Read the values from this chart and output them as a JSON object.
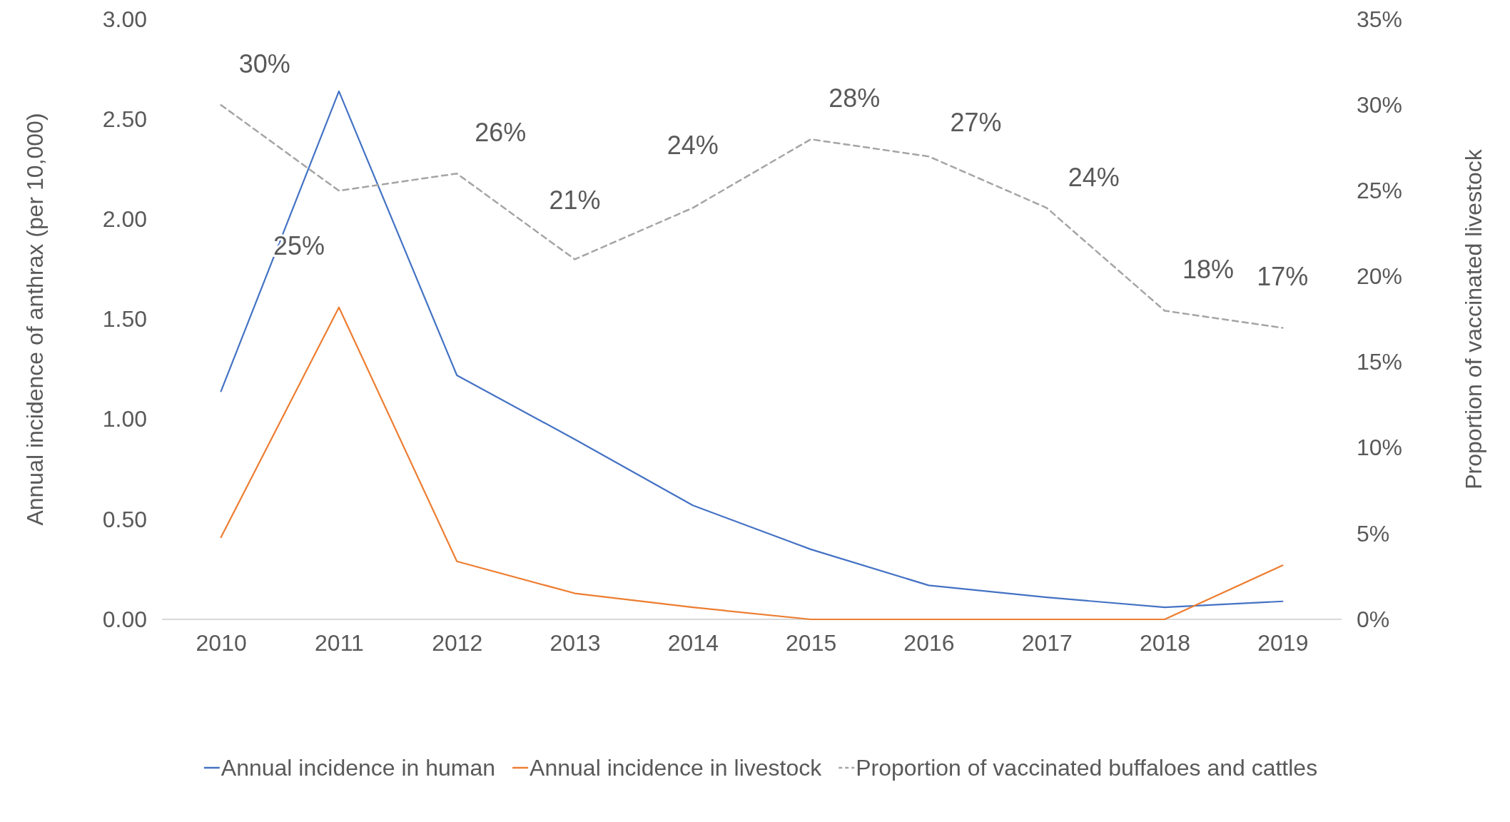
{
  "chart_data": {
    "type": "line",
    "categories": [
      "2010",
      "2011",
      "2012",
      "2013",
      "2014",
      "2015",
      "2016",
      "2017",
      "2018",
      "2019"
    ],
    "ylabel": "Annual incidence of anthrax (per 10,000)",
    "y2label": "Proportion of vaccinated livestock",
    "ylim": [
      0,
      3
    ],
    "yticks": [
      {
        "value": 0,
        "label": "0.00"
      },
      {
        "value": 0.5,
        "label": "0.50"
      },
      {
        "value": 1,
        "label": "1.00"
      },
      {
        "value": 1.5,
        "label": "1.50"
      },
      {
        "value": 2,
        "label": "2.00"
      },
      {
        "value": 2.5,
        "label": "2.50"
      },
      {
        "value": 3,
        "label": "3.00"
      }
    ],
    "y2lim": [
      0,
      35
    ],
    "y2ticks": [
      {
        "value": 0,
        "label": "0%"
      },
      {
        "value": 5,
        "label": "5%"
      },
      {
        "value": 10,
        "label": "10%"
      },
      {
        "value": 15,
        "label": "15%"
      },
      {
        "value": 20,
        "label": "20%"
      },
      {
        "value": 25,
        "label": "25%"
      },
      {
        "value": 30,
        "label": "30%"
      },
      {
        "value": 35,
        "label": "35%"
      }
    ],
    "series": [
      {
        "name": "Annual incidence in human",
        "color": "#4472c4",
        "values": [
          1.14,
          2.64,
          1.22,
          0.9,
          0.57,
          0.35,
          0.17,
          0.11,
          0.06,
          0.09
        ]
      },
      {
        "name": "Annual incidence in livestock",
        "color": "#ed7d31",
        "values": [
          0.41,
          1.56,
          0.29,
          0.13,
          0.06,
          0,
          0,
          0,
          0,
          0.27
        ]
      },
      {
        "name": "Proportion of vaccinated buffaloes and cattles",
        "color": "#a5a5a5",
        "axis": "y2",
        "line_style": "dashed",
        "values": [
          30,
          25,
          26,
          21,
          24,
          28,
          27,
          24,
          18,
          17
        ],
        "value_labels": [
          "30%",
          "25%",
          "26%",
          "21%",
          "24%",
          "28%",
          "27%",
          "24%",
          "18%",
          "17%"
        ]
      }
    ],
    "legend": "bottom",
    "grid": false,
    "marker": "none"
  }
}
